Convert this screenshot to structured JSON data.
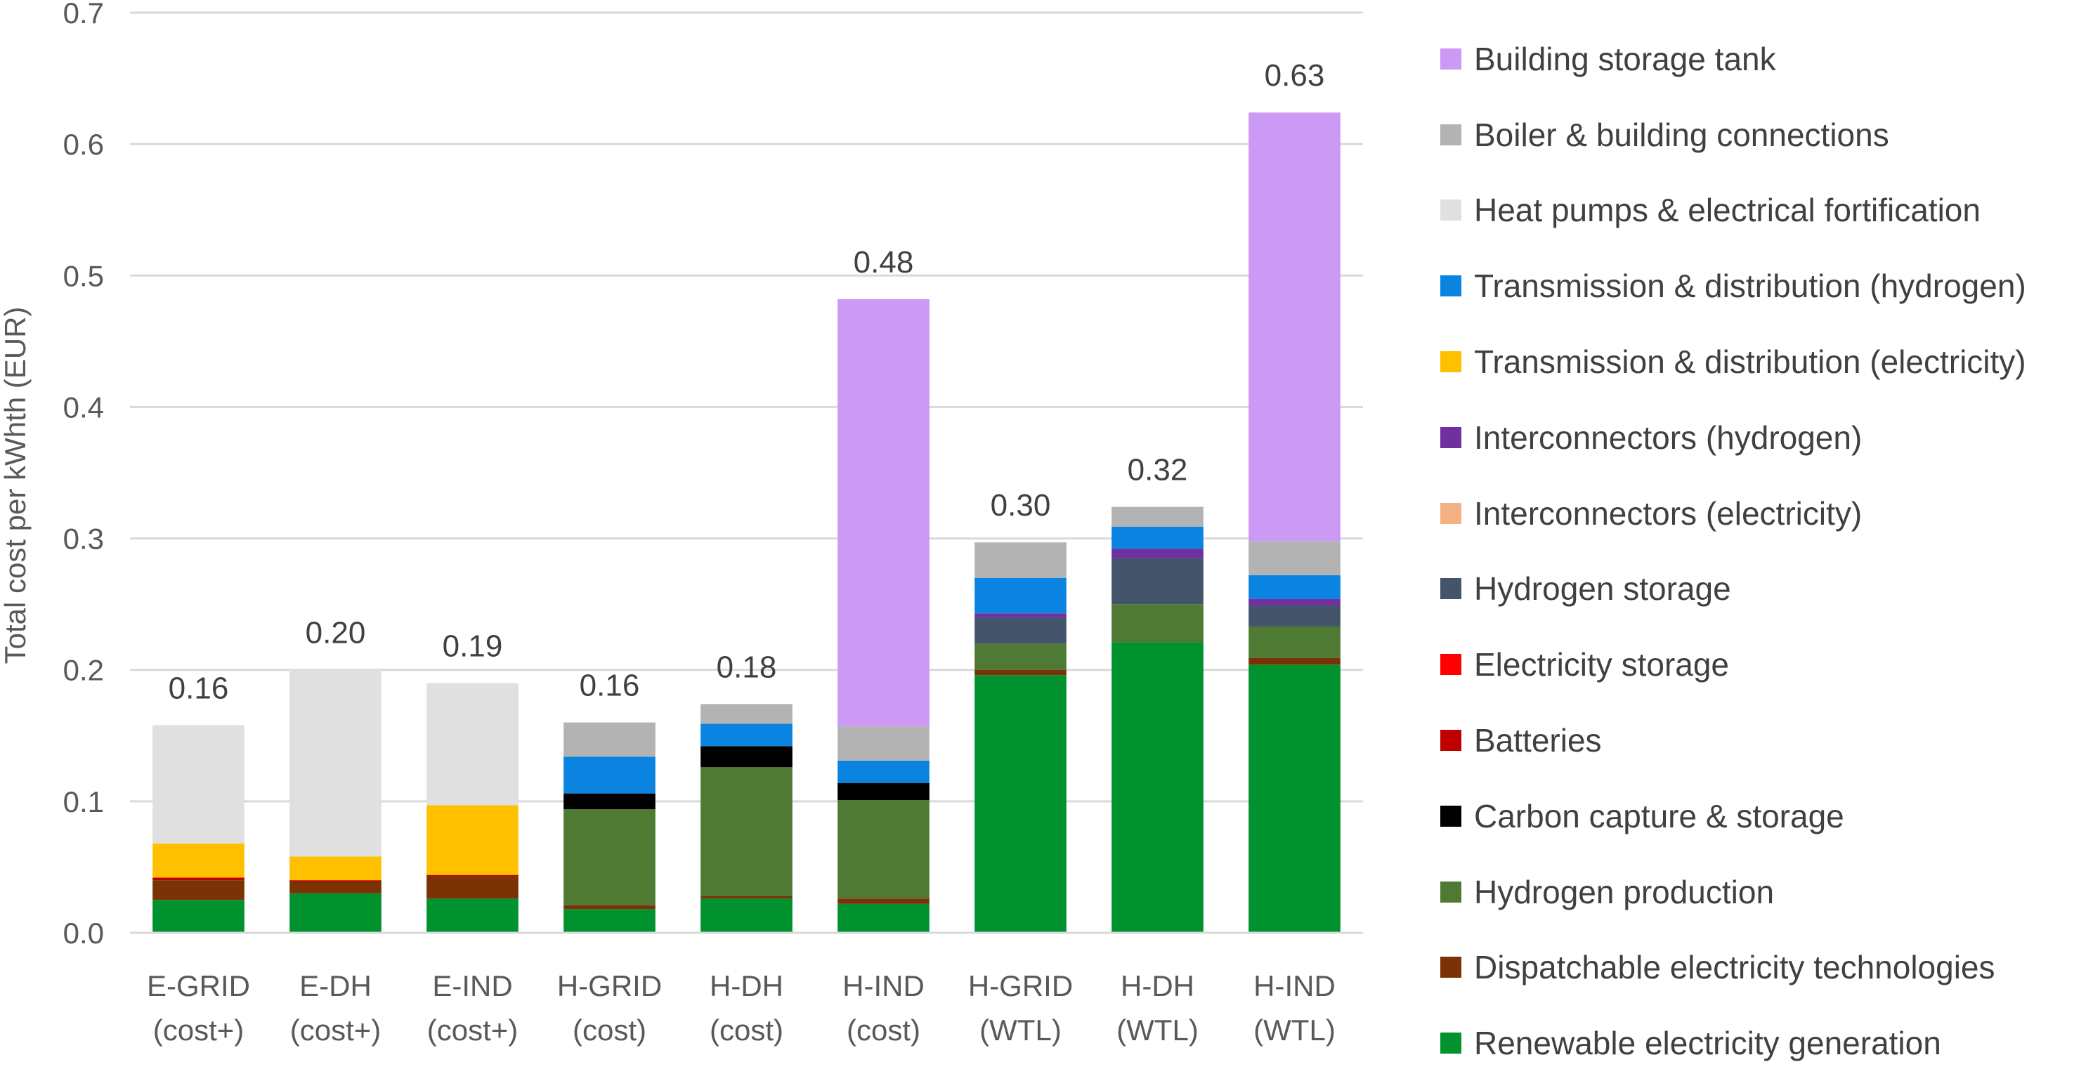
{
  "chart_data": {
    "type": "bar",
    "stacked": true,
    "ylabel": "Total cost per kWhth (EUR)",
    "xlabel": "",
    "ylim": [
      0,
      0.7
    ],
    "yticks": [
      "0.0",
      "0.1",
      "0.2",
      "0.3",
      "0.4",
      "0.5",
      "0.6",
      "0.7"
    ],
    "grid": true,
    "legend_position": "right",
    "categories": [
      [
        "E-GRID",
        "(cost+)"
      ],
      [
        "E-DH",
        "(cost+)"
      ],
      [
        "E-IND",
        "(cost+)"
      ],
      [
        "H-GRID",
        "(cost)"
      ],
      [
        "H-DH",
        "(cost)"
      ],
      [
        "H-IND",
        "(cost)"
      ],
      [
        "H-GRID",
        "(WTL)"
      ],
      [
        "H-DH",
        "(WTL)"
      ],
      [
        "H-IND",
        "(WTL)"
      ]
    ],
    "totals": [
      "0.16",
      "0.20",
      "0.19",
      "0.16",
      "0.18",
      "0.48",
      "0.30",
      "0.32",
      "0.63"
    ],
    "series": [
      {
        "name": "Renewable electricity generation",
        "color": "#00922E",
        "values": [
          0.025,
          0.03,
          0.026,
          0.018,
          0.026,
          0.022,
          0.196,
          0.221,
          0.204
        ]
      },
      {
        "name": "Dispatchable  electricity technologies",
        "color": "#7B3305",
        "values": [
          0.015,
          0.009,
          0.017,
          0.003,
          0.002,
          0.004,
          0.004,
          0.0,
          0.005
        ]
      },
      {
        "name": "Hydrogen production",
        "color": "#4E7A33",
        "values": [
          0.0,
          0.0,
          0.0,
          0.073,
          0.098,
          0.075,
          0.02,
          0.029,
          0.024
        ]
      },
      {
        "name": "Carbon capture & storage",
        "color": "#000000",
        "values": [
          0.0,
          0.0,
          0.0,
          0.012,
          0.016,
          0.013,
          0.0,
          0.0,
          0.0
        ]
      },
      {
        "name": "Batteries",
        "color": "#C00000",
        "values": [
          0.002,
          0.001,
          0.001,
          0.0,
          0.0,
          0.0,
          0.0,
          0.0,
          0.0
        ]
      },
      {
        "name": "Electricity storage",
        "color": "#FF0000",
        "values": [
          0.0,
          0.0,
          0.0,
          0.0,
          0.0,
          0.0,
          0.0,
          0.0,
          0.0
        ]
      },
      {
        "name": "Hydrogen storage",
        "color": "#44546A",
        "values": [
          0.0,
          0.0,
          0.0,
          0.0,
          0.0,
          0.0,
          0.02,
          0.035,
          0.016
        ]
      },
      {
        "name": "Interconnectors (electricity)",
        "color": "#F4B183",
        "values": [
          0.0,
          0.0,
          0.0,
          0.0,
          0.0,
          0.0,
          0.0,
          0.0,
          0.0
        ]
      },
      {
        "name": "Interconnectors (hydrogen)",
        "color": "#7030A0",
        "values": [
          0.0,
          0.0,
          0.0,
          0.0,
          0.0,
          0.0,
          0.003,
          0.007,
          0.005
        ]
      },
      {
        "name": "Transmission & distribution (electricity)",
        "color": "#FFC000",
        "values": [
          0.026,
          0.018,
          0.053,
          0.0,
          0.0,
          0.0,
          0.0,
          0.0,
          0.0
        ]
      },
      {
        "name": "Transmission & distribution (hydrogen)",
        "color": "#0A84E0",
        "values": [
          0.0,
          0.0,
          0.0,
          0.028,
          0.017,
          0.017,
          0.027,
          0.017,
          0.018
        ]
      },
      {
        "name": "Heat pumps & electrical fortification",
        "color": "#E0E0E0",
        "values": [
          0.09,
          0.142,
          0.093,
          0.0,
          0.0,
          0.0,
          0.0,
          0.0,
          0.0
        ]
      },
      {
        "name": "Boiler & building connections",
        "color": "#B3B3B3",
        "values": [
          0.0,
          0.0,
          0.0,
          0.026,
          0.015,
          0.026,
          0.027,
          0.015,
          0.026
        ]
      },
      {
        "name": "Building storage tank",
        "color": "#CC99F5",
        "values": [
          0.0,
          0.0,
          0.0,
          0.0,
          0.0,
          0.325,
          0.0,
          0.0,
          0.326
        ]
      }
    ],
    "legend_order": [
      "Building storage tank",
      "Boiler & building connections",
      "Heat pumps & electrical fortification",
      "Transmission & distribution (hydrogen)",
      "Transmission & distribution (electricity)",
      "Interconnectors (hydrogen)",
      "Interconnectors (electricity)",
      "Hydrogen storage",
      "Electricity storage",
      "Batteries",
      "Carbon capture & storage",
      "Hydrogen production",
      "Dispatchable  electricity technologies",
      "Renewable electricity generation"
    ]
  }
}
